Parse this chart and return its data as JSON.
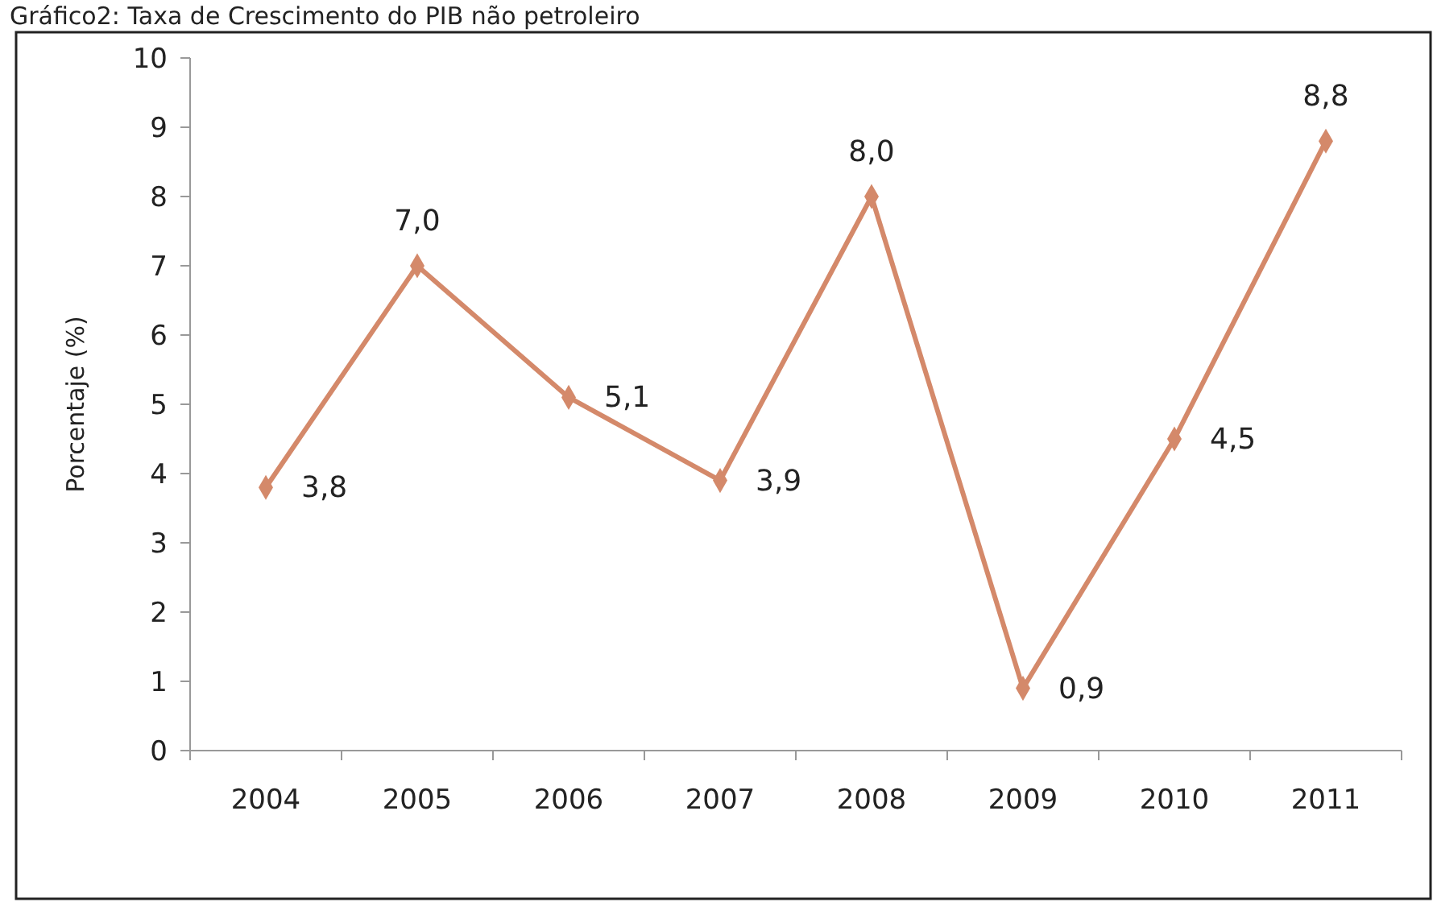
{
  "chart_data": {
    "type": "line",
    "title": "Gráfico2: Taxa de Crescimento do PIB não petroleiro",
    "ylabel": "Porcentaje (%)",
    "categories": [
      "2004",
      "2005",
      "2006",
      "2007",
      "2008",
      "2009",
      "2010",
      "2011"
    ],
    "values": [
      3.8,
      7.0,
      5.1,
      3.9,
      8.0,
      0.9,
      4.5,
      8.8
    ],
    "value_labels": [
      "3,8",
      "7,0",
      "5,1",
      "3,9",
      "8,0",
      "0,9",
      "4,5",
      "8,8"
    ],
    "color": "#d4896a",
    "marker": "diamond",
    "ylim": [
      0,
      10
    ],
    "yticks": [
      0,
      1,
      2,
      3,
      4,
      5,
      6,
      7,
      8,
      9,
      10
    ],
    "grid": false
  }
}
